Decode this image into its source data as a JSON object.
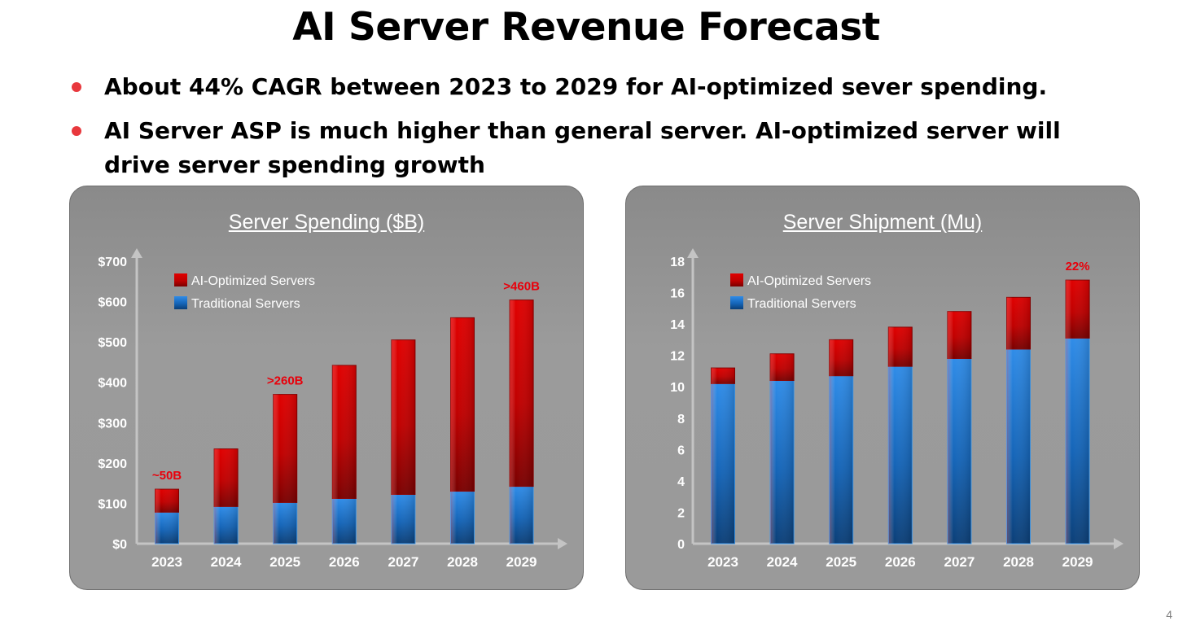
{
  "title": "AI Server Revenue Forecast",
  "bullets": [
    "About 44% CAGR between 2023 to 2029 for AI-optimized sever spending.",
    "AI Server ASP is much higher than general server. AI-optimized server will drive server spending growth"
  ],
  "page_number": "4",
  "colors": {
    "ai": "#d40000",
    "traditional": "#1a72c8",
    "annotation": "#e8000b"
  },
  "chart_data": [
    {
      "type": "bar",
      "stacked": true,
      "title": "Server Spending ($B)",
      "categories": [
        "2023",
        "2024",
        "2025",
        "2026",
        "2027",
        "2028",
        "2029"
      ],
      "series": [
        {
          "name": "Traditional Servers",
          "values": [
            78,
            92,
            102,
            112,
            122,
            130,
            142
          ]
        },
        {
          "name": "AI-Optimized Servers",
          "values": [
            57,
            143,
            268,
            330,
            383,
            430,
            462
          ]
        }
      ],
      "ylim": [
        0,
        700
      ],
      "yticks": [
        "$0",
        "$100",
        "$200",
        "$300",
        "$400",
        "$500",
        "$600",
        "$700"
      ],
      "legend": "top-left",
      "annotations": [
        {
          "text": "~50B",
          "category": "2023"
        },
        {
          "text": ">260B",
          "category": "2025"
        },
        {
          "text": ">460B",
          "category": "2029"
        }
      ]
    },
    {
      "type": "bar",
      "stacked": true,
      "title": "Server Shipment (Mu)",
      "categories": [
        "2023",
        "2024",
        "2025",
        "2026",
        "2027",
        "2028",
        "2029"
      ],
      "series": [
        {
          "name": "Traditional Servers",
          "values": [
            10.2,
            10.4,
            10.7,
            11.3,
            11.8,
            12.4,
            13.1
          ]
        },
        {
          "name": "AI-Optimized Servers",
          "values": [
            1.0,
            1.7,
            2.3,
            2.5,
            3.0,
            3.3,
            3.7
          ]
        }
      ],
      "ylim": [
        0,
        18
      ],
      "yticks": [
        "0",
        "2",
        "4",
        "6",
        "8",
        "10",
        "12",
        "14",
        "16",
        "18"
      ],
      "legend": "top-left",
      "annotations": [
        {
          "text": "22%",
          "category": "2029"
        }
      ]
    }
  ]
}
